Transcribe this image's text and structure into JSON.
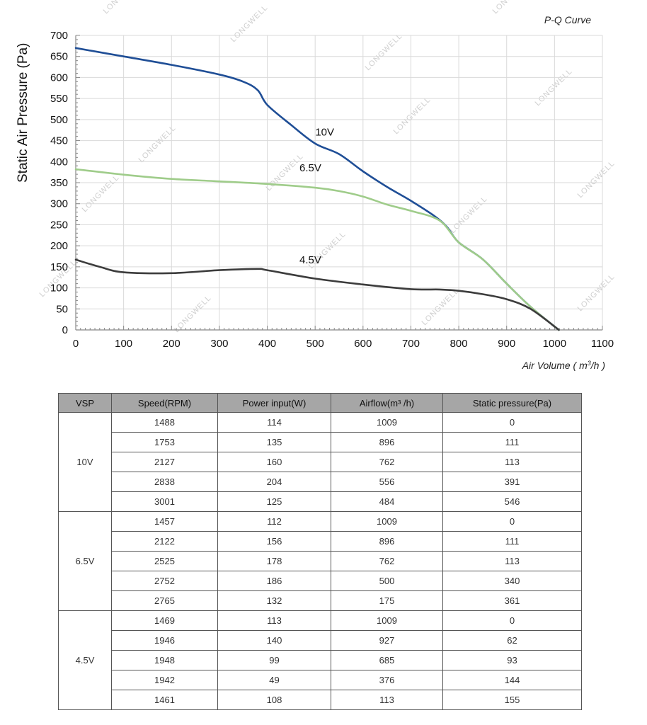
{
  "chart_data": {
    "type": "line",
    "title": "P-Q Curve",
    "xlabel": "Air Volume ( m³/h )",
    "ylabel": "Static Air Pressure  (Pa)",
    "xlim": [
      0,
      1100
    ],
    "ylim": [
      0,
      700
    ],
    "x_ticks": [
      0,
      100,
      200,
      300,
      400,
      500,
      600,
      700,
      800,
      900,
      1000,
      1100
    ],
    "y_ticks": [
      0,
      50,
      100,
      150,
      200,
      250,
      300,
      350,
      400,
      450,
      500,
      550,
      600,
      650,
      700
    ],
    "grid": true,
    "legend": "none",
    "watermark": "LONGWELL",
    "series": [
      {
        "name": "10V",
        "color": "#1f4e96",
        "points": [
          [
            0,
            670
          ],
          [
            100,
            650
          ],
          [
            200,
            630
          ],
          [
            300,
            607
          ],
          [
            350,
            590
          ],
          [
            380,
            570
          ],
          [
            400,
            535
          ],
          [
            450,
            487
          ],
          [
            500,
            443
          ],
          [
            550,
            418
          ],
          [
            600,
            377
          ],
          [
            650,
            340
          ],
          [
            700,
            307
          ],
          [
            750,
            270
          ],
          [
            775,
            245
          ],
          [
            800,
            208
          ],
          [
            850,
            168
          ],
          [
            900,
            110
          ],
          [
            950,
            55
          ],
          [
            1009,
            0
          ]
        ]
      },
      {
        "name": "6.5V",
        "color": "#9fcc8a",
        "points": [
          [
            0,
            382
          ],
          [
            100,
            369
          ],
          [
            200,
            359
          ],
          [
            300,
            353
          ],
          [
            400,
            347
          ],
          [
            500,
            338
          ],
          [
            550,
            330
          ],
          [
            600,
            317
          ],
          [
            650,
            298
          ],
          [
            700,
            283
          ],
          [
            760,
            260
          ],
          [
            800,
            208
          ],
          [
            850,
            168
          ],
          [
            900,
            110
          ],
          [
            950,
            55
          ],
          [
            1009,
            0
          ]
        ]
      },
      {
        "name": "4.5V",
        "color": "#3c3c3c",
        "points": [
          [
            0,
            167
          ],
          [
            50,
            150
          ],
          [
            100,
            137
          ],
          [
            200,
            135
          ],
          [
            300,
            142
          ],
          [
            380,
            145
          ],
          [
            400,
            142
          ],
          [
            500,
            122
          ],
          [
            600,
            108
          ],
          [
            700,
            97
          ],
          [
            760,
            96
          ],
          [
            800,
            93
          ],
          [
            850,
            85
          ],
          [
            900,
            73
          ],
          [
            950,
            50
          ],
          [
            1009,
            0
          ]
        ]
      }
    ]
  },
  "table": {
    "headers": [
      "VSP",
      "Speed(RPM)",
      "Power input(W)",
      "Airflow(m³ /h)",
      "Static pressure(Pa)"
    ],
    "groups": [
      {
        "vsp": "10V",
        "rows": [
          [
            "1488",
            "114",
            "1009",
            "0"
          ],
          [
            "1753",
            "135",
            "896",
            "111"
          ],
          [
            "2127",
            "160",
            "762",
            "113"
          ],
          [
            "2838",
            "204",
            "556",
            "391"
          ],
          [
            "3001",
            "125",
            "484",
            "546"
          ]
        ]
      },
      {
        "vsp": "6.5V",
        "rows": [
          [
            "1457",
            "112",
            "1009",
            "0"
          ],
          [
            "2122",
            "156",
            "896",
            "111"
          ],
          [
            "2525",
            "178",
            "762",
            "113"
          ],
          [
            "2752",
            "186",
            "500",
            "340"
          ],
          [
            "2765",
            "132",
            "175",
            "361"
          ]
        ]
      },
      {
        "vsp": "4.5V",
        "rows": [
          [
            "1469",
            "113",
            "1009",
            "0"
          ],
          [
            "1946",
            "140",
            "927",
            "62"
          ],
          [
            "1948",
            "99",
            "685",
            "93"
          ],
          [
            "1942",
            "49",
            "376",
            "144"
          ],
          [
            "1461",
            "108",
            "113",
            "155"
          ]
        ]
      }
    ]
  }
}
